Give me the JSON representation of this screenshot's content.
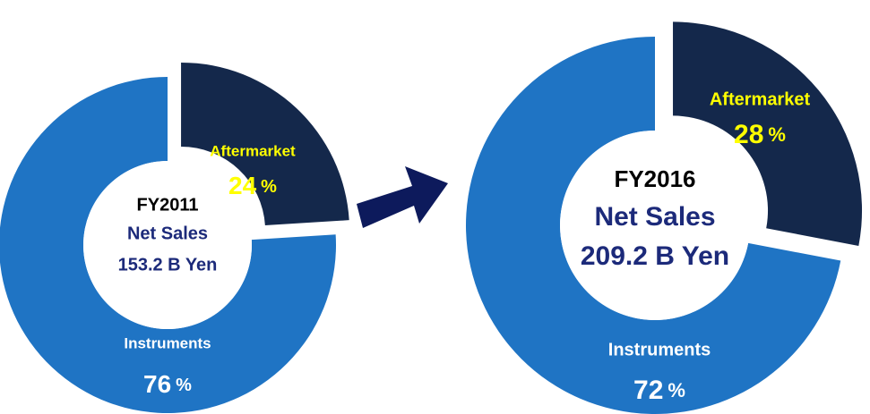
{
  "chart_data": [
    {
      "type": "pie",
      "center_label": [
        "FY2011",
        "Net Sales",
        "153.2 B Yen"
      ],
      "categories": [
        "Aftermarket",
        "Instruments"
      ],
      "values": [
        24,
        76
      ],
      "unit": "%",
      "colors": [
        "#14284b",
        "#1f74c4"
      ],
      "explode": [
        true,
        false
      ]
    },
    {
      "type": "pie",
      "center_label": [
        "FY2016",
        "Net Sales",
        "209.2 B Yen"
      ],
      "categories": [
        "Aftermarket",
        "Instruments"
      ],
      "values": [
        28,
        72
      ],
      "unit": "%",
      "colors": [
        "#14284b",
        "#1f74c4"
      ],
      "explode": [
        true,
        false
      ]
    }
  ]
}
